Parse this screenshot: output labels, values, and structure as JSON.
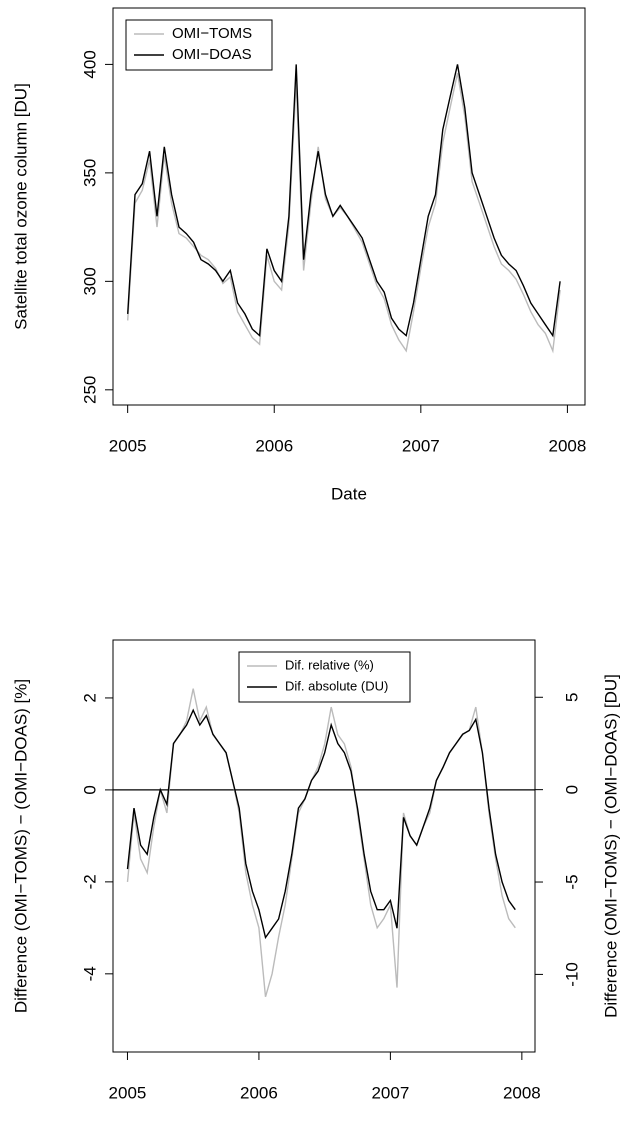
{
  "chart_data": [
    {
      "type": "line",
      "x_label": "Date",
      "y_label": "Satellite total ozone column [DU]",
      "x": [
        2005.0,
        2005.05,
        2005.1,
        2005.15,
        2005.2,
        2005.25,
        2005.3,
        2005.35,
        2005.4,
        2005.45,
        2005.5,
        2005.55,
        2005.6,
        2005.65,
        2005.7,
        2005.75,
        2005.8,
        2005.85,
        2005.9,
        2005.95,
        2006.0,
        2006.05,
        2006.1,
        2006.15,
        2006.2,
        2006.25,
        2006.3,
        2006.35,
        2006.4,
        2006.45,
        2006.5,
        2006.55,
        2006.6,
        2006.65,
        2006.7,
        2006.75,
        2006.8,
        2006.85,
        2006.9,
        2006.95,
        2007.0,
        2007.05,
        2007.1,
        2007.15,
        2007.2,
        2007.25,
        2007.3,
        2007.35,
        2007.4,
        2007.45,
        2007.5,
        2007.55,
        2007.6,
        2007.65,
        2007.7,
        2007.75,
        2007.8,
        2007.85,
        2007.9,
        2007.95
      ],
      "xlim": [
        2004.9,
        2008.12
      ],
      "xticks": [
        2005,
        2006,
        2007,
        2008
      ],
      "ylim": [
        243,
        426
      ],
      "yticks": [
        250,
        300,
        350,
        400
      ],
      "legend": "top-left",
      "series": [
        {
          "name": "OMI−TOMS",
          "color": "#bbbbbb",
          "values": [
            282,
            336,
            342,
            356,
            325,
            358,
            336,
            322,
            320,
            316,
            312,
            310,
            306,
            299,
            302,
            286,
            280,
            274,
            271,
            312,
            300,
            296,
            326,
            392,
            305,
            336,
            362,
            338,
            330,
            334,
            330,
            324,
            318,
            308,
            298,
            292,
            280,
            273,
            268,
            286,
            306,
            325,
            336,
            364,
            380,
            396,
            376,
            346,
            336,
            326,
            316,
            308,
            305,
            301,
            294,
            286,
            280,
            276,
            268,
            296
          ]
        },
        {
          "name": "OMI−DOAS",
          "color": "#000000",
          "values": [
            285,
            340,
            345,
            360,
            330,
            362,
            340,
            325,
            322,
            318,
            310,
            308,
            305,
            300,
            305,
            290,
            285,
            278,
            275,
            315,
            305,
            300,
            330,
            400,
            310,
            340,
            360,
            340,
            330,
            335,
            330,
            325,
            320,
            310,
            300,
            295,
            283,
            278,
            275,
            290,
            310,
            330,
            340,
            370,
            385,
            400,
            380,
            350,
            340,
            330,
            320,
            312,
            308,
            305,
            298,
            290,
            285,
            280,
            275,
            300
          ]
        }
      ]
    },
    {
      "type": "line",
      "x_label": "Date",
      "y_label": "Difference (OMI−TOMS) − (OMI−DOAS) [%]",
      "y2_label": "Difference (OMI−TOMS) − (OMI−DOAS) [DU]",
      "x": [
        2005.0,
        2005.05,
        2005.1,
        2005.15,
        2005.2,
        2005.25,
        2005.3,
        2005.35,
        2005.4,
        2005.45,
        2005.5,
        2005.55,
        2005.6,
        2005.65,
        2005.7,
        2005.75,
        2005.8,
        2005.85,
        2005.9,
        2005.95,
        2006.0,
        2006.05,
        2006.1,
        2006.15,
        2006.2,
        2006.25,
        2006.3,
        2006.35,
        2006.4,
        2006.45,
        2006.5,
        2006.55,
        2006.6,
        2006.65,
        2006.7,
        2006.75,
        2006.8,
        2006.85,
        2006.9,
        2006.95,
        2007.0,
        2007.05,
        2007.1,
        2007.15,
        2007.2,
        2007.25,
        2007.3,
        2007.35,
        2007.4,
        2007.45,
        2007.5,
        2007.55,
        2007.6,
        2007.65,
        2007.7,
        2007.75,
        2007.8,
        2007.85,
        2007.9,
        2007.95
      ],
      "xlim": [
        2004.89,
        2008.1
      ],
      "xticks": [
        2005,
        2006,
        2007,
        2008
      ],
      "ylim": [
        -5.7,
        3.26
      ],
      "yticks": [
        -4,
        -2,
        0,
        2
      ],
      "y2lim": [
        -14.2,
        8.1
      ],
      "y2ticks": [
        -10,
        -5,
        0,
        5
      ],
      "hline": 0,
      "legend": "top-center",
      "series": [
        {
          "name": "Dif. relative (%)",
          "color": "#bbbbbb",
          "values": [
            -2.0,
            -0.5,
            -1.5,
            -1.8,
            -0.8,
            0,
            -0.5,
            1.0,
            1.2,
            1.5,
            2.2,
            1.5,
            1.8,
            1.2,
            1.0,
            0.8,
            0.2,
            -0.5,
            -1.8,
            -2.5,
            -3.0,
            -4.5,
            -4.0,
            -3.2,
            -2.5,
            -1.5,
            -0.5,
            -0.2,
            0.2,
            0.5,
            1.0,
            1.8,
            1.2,
            1.0,
            0.5,
            -0.5,
            -1.5,
            -2.5,
            -3.0,
            -2.8,
            -2.5,
            -4.3,
            -0.5,
            -1.0,
            -1.2,
            -0.8,
            -0.5,
            0.2,
            0.5,
            0.8,
            1.0,
            1.2,
            1.3,
            1.8,
            0.8,
            -0.5,
            -1.5,
            -2.3,
            -2.8,
            -3.0
          ]
        },
        {
          "name": "Dif. absolute (DU)",
          "color": "#000000",
          "axis": "y2",
          "values": [
            -4.3,
            -1.0,
            -3.0,
            -3.5,
            -1.5,
            0,
            -0.8,
            2.5,
            3.0,
            3.5,
            4.3,
            3.5,
            4.0,
            3.0,
            2.5,
            2.0,
            0.5,
            -1.0,
            -4.0,
            -5.5,
            -6.5,
            -8.0,
            -7.5,
            -7.0,
            -5.5,
            -3.5,
            -1.0,
            -0.5,
            0.5,
            1.0,
            2.0,
            3.5,
            2.5,
            2.0,
            1.0,
            -1.0,
            -3.5,
            -5.5,
            -6.5,
            -6.5,
            -6.0,
            -7.5,
            -1.5,
            -2.5,
            -3.0,
            -2.0,
            -1.0,
            0.5,
            1.2,
            2.0,
            2.5,
            3.0,
            3.2,
            3.8,
            2.0,
            -1.0,
            -3.5,
            -5.0,
            -6.0,
            -6.5
          ]
        }
      ]
    }
  ]
}
